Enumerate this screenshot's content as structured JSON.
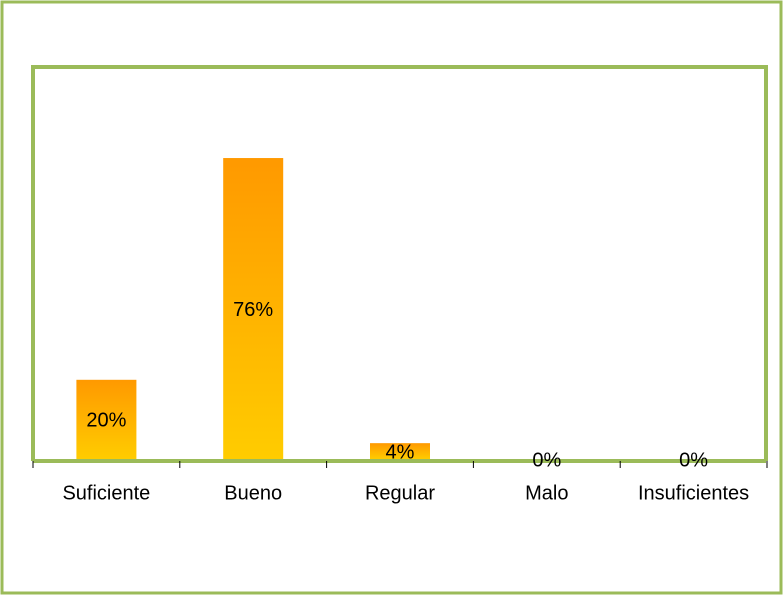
{
  "chart_data": {
    "type": "bar",
    "categories": [
      "Suficiente",
      "Bueno",
      "Regular",
      "Malo",
      "Insuficientes"
    ],
    "values": [
      20,
      76,
      4,
      0,
      0
    ],
    "value_labels": [
      "20%",
      "76%",
      "4%",
      "0%",
      "0%"
    ],
    "color": "#ffb000",
    "ylim": [
      0,
      100
    ]
  }
}
